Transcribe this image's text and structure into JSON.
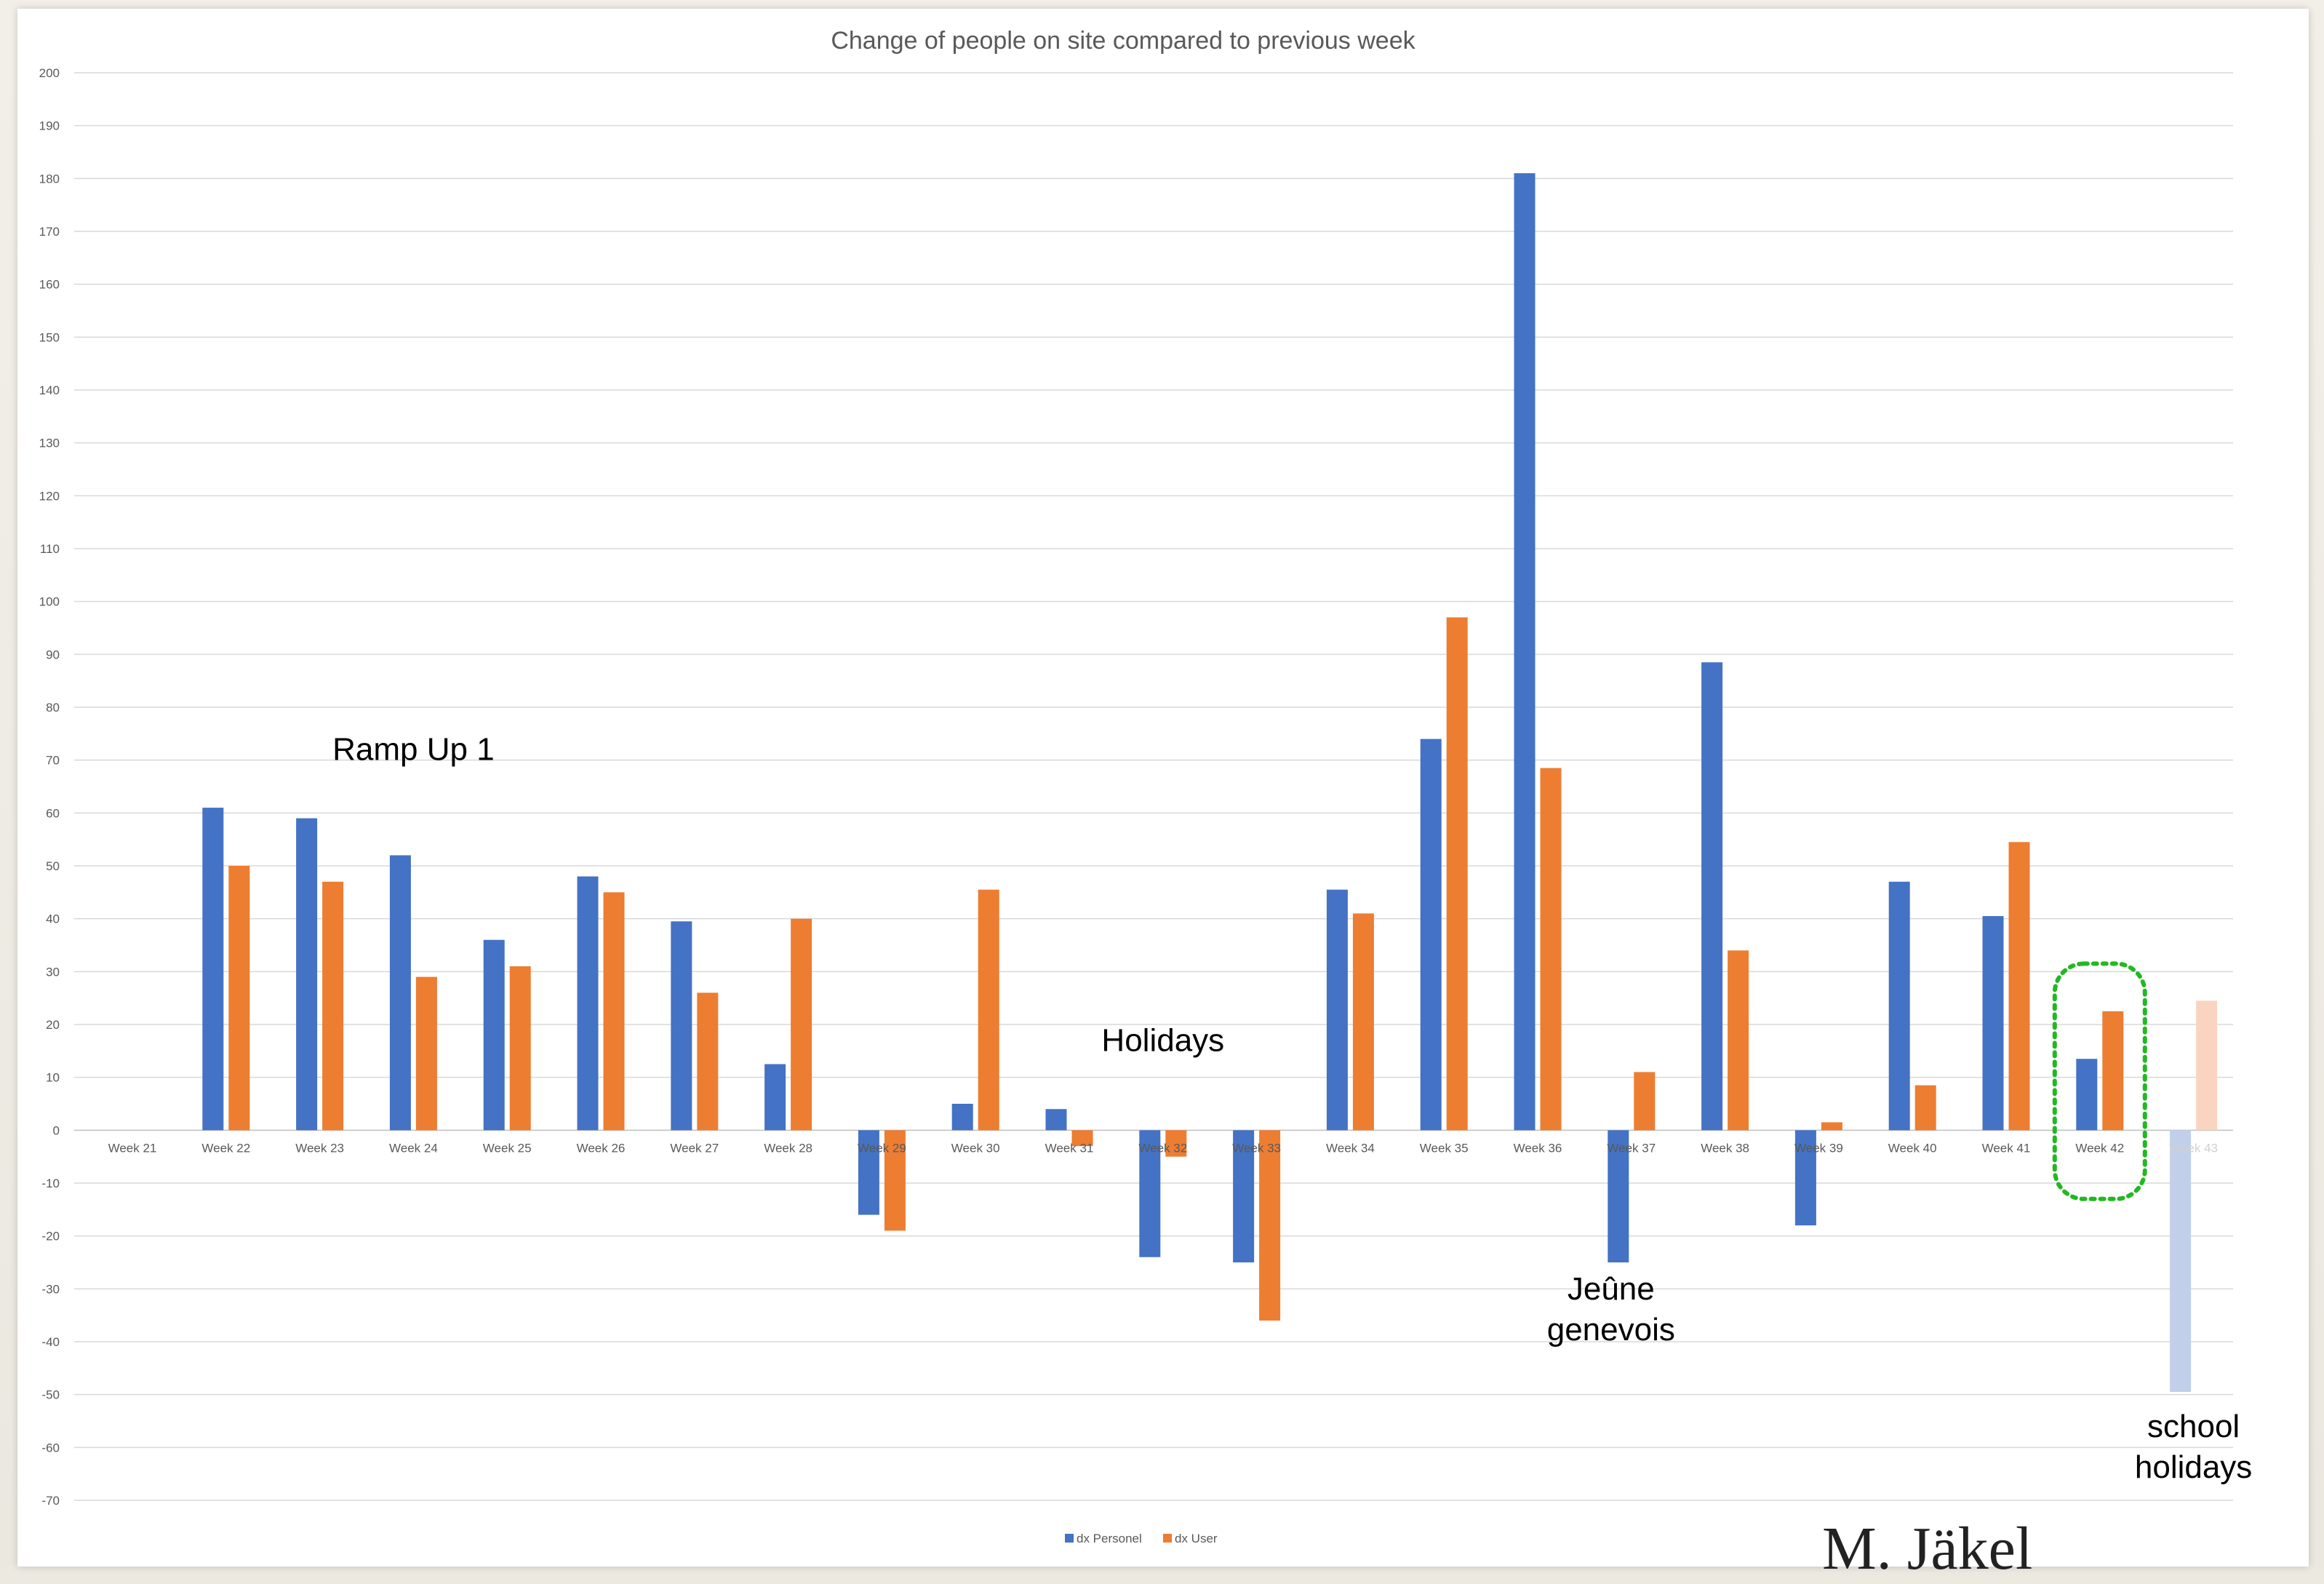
{
  "chart_data": {
    "type": "bar",
    "title": "Change of people on site compared to previous week",
    "xlabel": "",
    "ylabel": "",
    "ylim": [
      -70,
      200
    ],
    "ytick_step": 10,
    "grid": true,
    "legend_position": "bottom",
    "categories": [
      "Week 21",
      "Week 22",
      "Week 23",
      "Week 24",
      "Week 25",
      "Week 26",
      "Week 27",
      "Week 28",
      "Week 29",
      "Week 30",
      "Week 31",
      "Week 32",
      "Week 33",
      "Week 34",
      "Week 35",
      "Week 36",
      "Week 37",
      "Week 38",
      "Week 39",
      "Week 40",
      "Week 41",
      "Week 42",
      "Week 43"
    ],
    "series": [
      {
        "name": "dx Personel",
        "color": "#4472c4",
        "faded_color": "#c1cfea",
        "values": [
          0,
          61,
          59,
          52,
          36,
          48,
          39.5,
          12.5,
          -16,
          5,
          4,
          -24,
          -25,
          45.5,
          74,
          181,
          -25,
          88.5,
          -18,
          47,
          40.5,
          13.5,
          -49.5
        ]
      },
      {
        "name": "dx User",
        "color": "#ed7d31",
        "faded_color": "#f9d5c1",
        "values": [
          0,
          50,
          47,
          29,
          31,
          45,
          26,
          40,
          -19,
          45.5,
          -3,
          -5,
          -36,
          41,
          97,
          68.5,
          11,
          34,
          1.5,
          8.5,
          54.5,
          22.5,
          24.5
        ]
      }
    ],
    "faded_categories": [
      "Week 43"
    ],
    "highlight_category": "Week 42",
    "annotations": [
      {
        "text": "Ramp Up 1",
        "category": "Week 24",
        "value": 70
      },
      {
        "text": "Holidays",
        "category": "Week 32",
        "value": 15
      },
      {
        "text": "Jeûne genevois",
        "category": "Week 37",
        "value": -32
      },
      {
        "text": "school holidays",
        "category": "Week 43",
        "value": -58
      }
    ]
  },
  "signature": "M. Jäkel"
}
